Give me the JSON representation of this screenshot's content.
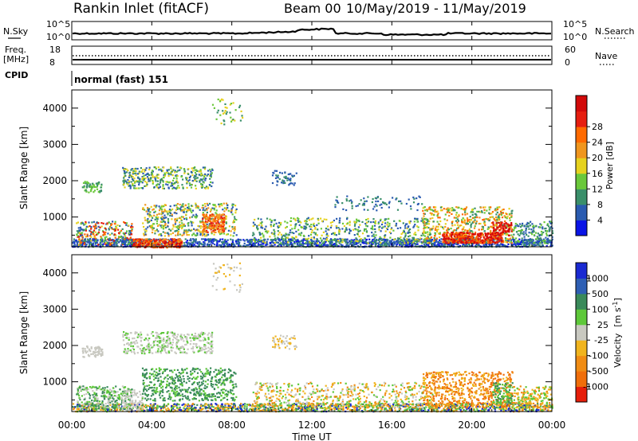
{
  "header": {
    "station": "Rankin Inlet (fitACF)",
    "beam": "Beam 00",
    "date_range": "10/May/2019 - 11/May/2019"
  },
  "nsky_panel": {
    "left_label": "N.Sky",
    "right_label": "N.Search",
    "ticks": [
      {
        "base": "10",
        "exp": "^5"
      },
      {
        "base": "10",
        "exp": "^0"
      }
    ]
  },
  "freq_panel": {
    "left_label_top": "Freq.",
    "left_label_bottom": "[MHz]",
    "right_label": "Nave",
    "left_ticks": [
      "18",
      "8"
    ],
    "right_ticks": [
      "60",
      "0"
    ]
  },
  "cpid_panel": {
    "label": "CPID",
    "text": "normal (fast) 151"
  },
  "chart_data": [
    {
      "type": "heatmap",
      "quantity": "Power",
      "ylabel": "Slant Range [km]",
      "ylim": [
        180,
        4500
      ],
      "y_ticks": [
        "1000",
        "2000",
        "3000",
        "4000"
      ],
      "colorbar_label": "Power [dB]",
      "colorbar_ticks": [
        "4",
        "8",
        "12",
        "16",
        "20",
        "24",
        "28"
      ],
      "colorbar_colors": [
        "#0a14e6",
        "#2a5bb0",
        "#3a8f6a",
        "#6ac83a",
        "#e6d21e",
        "#f0961e",
        "#ff6a00",
        "#e61e10",
        "#d20a0a"
      ]
    },
    {
      "type": "heatmap",
      "quantity": "Velocity",
      "ylabel": "Slant Range [km]",
      "ylim": [
        180,
        4500
      ],
      "y_ticks": [
        "1000",
        "2000",
        "3000",
        "4000"
      ],
      "colorbar_label": "Velocity",
      "colorbar_unit_base": "[m s",
      "colorbar_unit_exp": "-1",
      "colorbar_unit_close": "]",
      "colorbar_ticks": [
        "1000",
        "500",
        "100",
        "25",
        "-25",
        "-100",
        "-500",
        "-1000"
      ],
      "colorbar_colors": [
        "#1a2ad2",
        "#2e5fb4",
        "#3a8a5a",
        "#5ec83a",
        "#c8c8c0",
        "#f0b41e",
        "#f08c14",
        "#f06e0a",
        "#e61e0a"
      ]
    }
  ],
  "time_axis": {
    "xlabel": "Time UT",
    "ticks": [
      "00:00",
      "04:00",
      "08:00",
      "12:00",
      "16:00",
      "20:00",
      "00:00"
    ]
  }
}
